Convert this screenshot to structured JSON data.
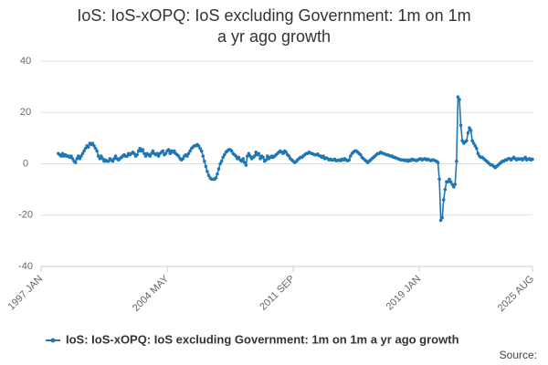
{
  "chart_data": {
    "type": "line",
    "title": "IoS: IoS-xOPQ: IoS excluding Government: 1m on 1m a yr ago growth",
    "categories": [
      "1997 JAN",
      null,
      null,
      null,
      null,
      null,
      null,
      null,
      null,
      null,
      null,
      null,
      null,
      null,
      null,
      null,
      null,
      null,
      null,
      null,
      null,
      null,
      null,
      null,
      null,
      null,
      null,
      null,
      null,
      null,
      null,
      null,
      null,
      null,
      null,
      null,
      null,
      null,
      null,
      null,
      null,
      null,
      null,
      null,
      null,
      null,
      null,
      null,
      null,
      null,
      null,
      null,
      null,
      null,
      null,
      null,
      null,
      null,
      null,
      null,
      null,
      null,
      null,
      null,
      null,
      null,
      null,
      null,
      null,
      null,
      null,
      null,
      null,
      null,
      null,
      null,
      null,
      null,
      null,
      null,
      null,
      null,
      null,
      null,
      null,
      null,
      null,
      null,
      "2004 MAY",
      null,
      null,
      null,
      null,
      null,
      null,
      null,
      null,
      null,
      null,
      null,
      null,
      null,
      null,
      null,
      null,
      null,
      null,
      null,
      null,
      null,
      null,
      null,
      null,
      null,
      null,
      null,
      null,
      null,
      null,
      null,
      null,
      null,
      null,
      null,
      null,
      null,
      null,
      null,
      null,
      null,
      null,
      null,
      null,
      null,
      null,
      null,
      null,
      null,
      null,
      null,
      null,
      null,
      null,
      null,
      null,
      null,
      null,
      null,
      null,
      null,
      null,
      null,
      null,
      null,
      null,
      null,
      null,
      null,
      null,
      null,
      null,
      null,
      null,
      null,
      null,
      null,
      null,
      null,
      null,
      null,
      null,
      null,
      null,
      null,
      null,
      null,
      "2011 SEP",
      null,
      null,
      null,
      null,
      null,
      null,
      null,
      null,
      null,
      null,
      null,
      null,
      null,
      null,
      null,
      null,
      null,
      null,
      null,
      null,
      null,
      null,
      null,
      null,
      null,
      null,
      null,
      null,
      null,
      null,
      null,
      null,
      null,
      null,
      null,
      null,
      null,
      null,
      null,
      null,
      null,
      null,
      null,
      null,
      null,
      null,
      null,
      null,
      null,
      null,
      null,
      null,
      null,
      null,
      null,
      null,
      null,
      null,
      null,
      null,
      null,
      null,
      null,
      null,
      null,
      null,
      null,
      null,
      null,
      null,
      null,
      null,
      null,
      null,
      null,
      null,
      null,
      null,
      null,
      null,
      null,
      null,
      null,
      null,
      null,
      null,
      null,
      "2019 JAN",
      null,
      null,
      null,
      null,
      null,
      null,
      null,
      null,
      null,
      null,
      null,
      null,
      null,
      null,
      null,
      null,
      null,
      null,
      null,
      null,
      null,
      null,
      null,
      null,
      null,
      null,
      null,
      null,
      null,
      null,
      null,
      null,
      null,
      null,
      null,
      null,
      null,
      null,
      null,
      null,
      null,
      null,
      null,
      null,
      null,
      null,
      null,
      null,
      null,
      null,
      null,
      null,
      null,
      null,
      null,
      null,
      null,
      null,
      null,
      null,
      null,
      null,
      null,
      null,
      null,
      null,
      null,
      null,
      null,
      null,
      null,
      null,
      null,
      null,
      null,
      null,
      null,
      null,
      "2025 AUG"
    ],
    "series": [
      {
        "name": "IoS: IoS-xOPQ: IoS excluding Government: 1m on 1m a yr ago growth",
        "color": "#1f77b4",
        "values": [
          null,
          null,
          null,
          null,
          null,
          null,
          null,
          null,
          null,
          null,
          null,
          null,
          4,
          3.5,
          3,
          4,
          3,
          3.5,
          3,
          3,
          2.5,
          3,
          2,
          1,
          0.5,
          2,
          3,
          2,
          3,
          4,
          5,
          6,
          7,
          6.5,
          8,
          7.5,
          8,
          7,
          6,
          5,
          3,
          2,
          3,
          2,
          1,
          1.5,
          1,
          1,
          2,
          1.5,
          1,
          2,
          3,
          2,
          1.5,
          2,
          2.5,
          3,
          3.5,
          3,
          3,
          4,
          3.5,
          4,
          4.5,
          4,
          3,
          3.5,
          5,
          6,
          5,
          5.5,
          4,
          3,
          4,
          3.5,
          3,
          4,
          5,
          4,
          3.5,
          4,
          3,
          4,
          4.5,
          5,
          3.5,
          4,
          5,
          5.5,
          4,
          5,
          4.5,
          5,
          4,
          3.5,
          3,
          2,
          1.5,
          2,
          3,
          3.5,
          3,
          4,
          5,
          6,
          6.5,
          7,
          7,
          7.5,
          7,
          6,
          5,
          3,
          1,
          -1,
          -3,
          -4.5,
          -5.5,
          -6,
          -6,
          -6,
          -5.5,
          -4,
          -2,
          0,
          1,
          2.5,
          3.5,
          4.5,
          5,
          5.5,
          5.5,
          5,
          4,
          3.5,
          3,
          2,
          2.5,
          1.5,
          1,
          2,
          0.5,
          -0.5,
          3,
          4,
          3,
          2,
          2.5,
          3,
          4.5,
          3.5,
          4,
          2,
          3,
          2.5,
          1,
          1.5,
          3,
          2,
          2.5,
          3,
          2.5,
          3,
          3.5,
          4,
          4.5,
          5,
          4.5,
          4,
          5,
          4.5,
          3.5,
          3,
          2,
          1.5,
          1,
          0.5,
          0.8,
          1.5,
          2,
          2.5,
          2.5,
          3,
          3.5,
          4,
          4,
          4.5,
          4.2,
          4,
          3.8,
          3.5,
          3.5,
          3.8,
          3.2,
          3,
          2.5,
          3,
          2,
          2.3,
          2,
          1.5,
          1.8,
          1.5,
          1.5,
          1.8,
          1.2,
          1.3,
          1.5,
          1.2,
          1.8,
          1.5,
          2,
          1.5,
          1.2,
          1.5,
          3,
          4,
          4.5,
          5,
          5,
          4.5,
          4,
          3.5,
          2.5,
          2,
          1.5,
          1,
          0.5,
          1,
          1.5,
          2,
          2.5,
          3,
          3.5,
          4,
          4,
          4.5,
          4.2,
          4,
          3.8,
          3.5,
          3.5,
          3.2,
          3,
          3,
          2.5,
          2.5,
          2.2,
          2,
          1.8,
          1.5,
          1.5,
          1.5,
          1.2,
          1.5,
          1,
          1.5,
          1.2,
          1.8,
          1.5,
          1.5,
          1.2,
          1.5,
          1.8,
          2,
          1.5,
          1.8,
          2,
          1.5,
          1.8,
          1.5,
          1.2,
          1.5,
          1.5,
          1.2,
          1,
          0.5,
          -6,
          -22,
          -21,
          -14,
          -10,
          -7,
          -7,
          -6,
          -7,
          -8,
          -9,
          -8,
          1,
          26,
          25,
          15,
          9,
          8,
          8.5,
          9,
          12,
          14,
          13,
          9,
          8,
          7,
          6,
          4,
          3,
          2.5,
          2.5,
          2,
          1.5,
          1,
          0.5,
          0,
          -0.5,
          -0.5,
          -1,
          -1.5,
          -1,
          -0.5,
          0,
          0.5,
          1,
          1,
          1.5,
          1.5,
          2,
          2,
          1.5,
          2,
          2.5,
          2,
          1.5,
          2,
          1.8,
          2,
          1.5,
          2,
          2.5,
          1.5,
          1.8,
          2,
          1.5,
          1.8
        ]
      }
    ],
    "ylim": [
      -40,
      40
    ],
    "yticks": [
      -40,
      -20,
      0,
      20,
      40
    ],
    "grid": true,
    "legend": "bottom",
    "source": "Source:"
  }
}
